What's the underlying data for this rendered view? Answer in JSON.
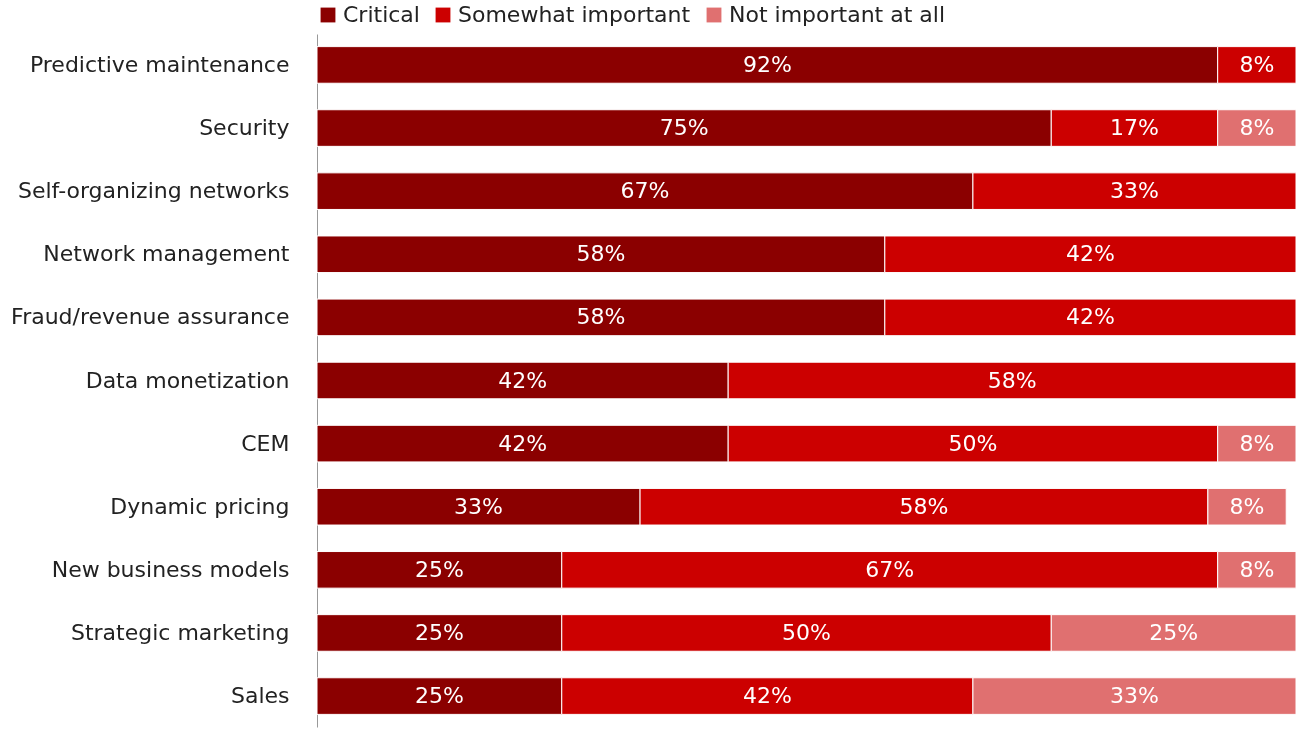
{
  "chart_data": {
    "type": "bar",
    "orientation": "horizontal",
    "stacked": true,
    "legend": "top",
    "grid": false,
    "tick_labels": "y",
    "xlim": [
      0,
      100
    ],
    "categories": [
      "Predictive maintenance",
      "Security",
      "Self-organizing networks",
      "Network management",
      "Fraud/revenue assurance",
      "Data monetization",
      "CEM",
      "Dynamic pricing",
      "New business models",
      "Strategic marketing",
      "Sales"
    ],
    "series": [
      {
        "name": "Critical",
        "color": "#8b0000",
        "values": [
          92,
          75,
          67,
          58,
          58,
          42,
          42,
          33,
          25,
          25,
          25
        ],
        "value_labels": [
          "92%",
          "75%",
          "67%",
          "58%",
          "58%",
          "42%",
          "42%",
          "33%",
          "25%",
          "25%",
          "25%"
        ]
      },
      {
        "name": "Somewhat important",
        "color": "#cc0000",
        "values": [
          8,
          17,
          33,
          42,
          42,
          58,
          50,
          58,
          67,
          50,
          42
        ],
        "value_labels": [
          "8%",
          "17%",
          "33%",
          "42%",
          "42%",
          "58%",
          "50%",
          "58%",
          "67%",
          "50%",
          "42%"
        ]
      },
      {
        "name": "Not important at all",
        "color": "#e07070",
        "values": [
          null,
          8,
          null,
          null,
          null,
          null,
          8,
          8,
          8,
          25,
          33
        ],
        "value_labels": [
          null,
          "8%",
          null,
          null,
          null,
          null,
          "8%",
          "8%",
          "8%",
          "25%",
          "33%"
        ]
      }
    ]
  }
}
